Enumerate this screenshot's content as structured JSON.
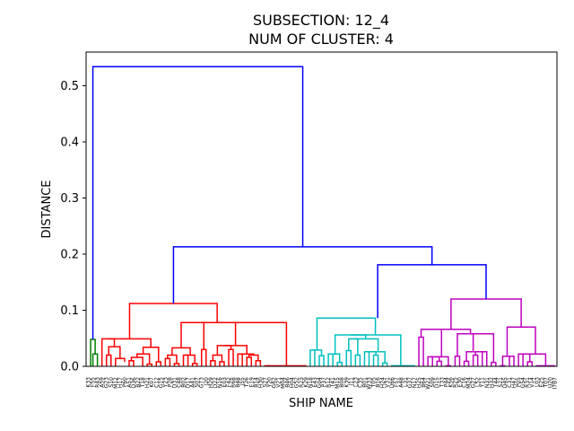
{
  "chart_data": {
    "type": "dendrogram",
    "title_lines": [
      "SUBSECTION: 12_4",
      "NUM OF CLUSTER: 4"
    ],
    "xlabel": "SHIP NAME",
    "ylabel": "DISTANCE",
    "ylim": [
      0,
      0.56
    ],
    "yticks": [
      "0.0",
      "0.1",
      "0.2",
      "0.3",
      "0.4",
      "0.5"
    ],
    "leaf_count": 104,
    "leaf_labels": [
      "K33",
      "F55",
      "R43",
      "A59",
      "G23",
      "S10",
      "M12",
      "H17",
      "P60",
      "A51",
      "D36",
      "B22",
      "T18",
      "H21",
      "K07",
      "C12",
      "G15",
      "Y23",
      "P28",
      "D31",
      "C48",
      "B02",
      "D17",
      "A41",
      "S07",
      "G73",
      "J20",
      "H29",
      "D22",
      "N16",
      "E03",
      "F42",
      "R68",
      "B48",
      "J55",
      "T26",
      "E19",
      "B14",
      "H30",
      "S27",
      "Y20",
      "G62",
      "V21",
      "M04",
      "B46",
      "H04",
      "G52",
      "R23",
      "K29",
      "N18",
      "E43",
      "G04",
      "P37",
      "R12",
      "T41",
      "M15",
      "B08",
      "K39",
      "J11",
      "L23",
      "C35",
      "B01",
      "W33",
      "T05",
      "B16",
      "H24",
      "V31",
      "D66",
      "F57",
      "A48",
      "L31",
      "G37",
      "N17",
      "H25",
      "B64",
      "W21",
      "S09",
      "D15",
      "T33",
      "P44",
      "K56",
      "R25",
      "E30",
      "C16",
      "M24",
      "G27",
      "L52",
      "Y11",
      "N31",
      "H32",
      "T44",
      "S21",
      "D45",
      "C31",
      "H47",
      "P05",
      "G54",
      "R31",
      "V14",
      "L03",
      "E25",
      "T07",
      "U20",
      "I7B7"
    ],
    "clusters": [
      {
        "color": "#008000",
        "leaves": [
          0,
          2
        ]
      },
      {
        "color": "#ff0000",
        "leaves": [
          3,
          48
        ]
      },
      {
        "color": "#00bfbf",
        "leaves": [
          49,
          72
        ]
      },
      {
        "color": "#bf00bf",
        "leaves": [
          73,
          103
        ]
      }
    ],
    "links": [
      {
        "color": "#008000",
        "lx": 0.5,
        "ly": 0,
        "rx": 1.5,
        "ry": 0.022,
        "h": 0.048
      },
      {
        "color": "#008000",
        "lx": 1,
        "ly": 0,
        "rx": 2,
        "ry": 0,
        "h": 0.022
      },
      {
        "color": "#ff0000",
        "lx": 4,
        "ly": 0,
        "rx": 5,
        "ry": 0,
        "h": 0.02
      },
      {
        "color": "#ff0000",
        "lx": 6,
        "ly": 0,
        "rx": 8,
        "ry": 0.008,
        "h": 0.014
      },
      {
        "color": "#ff0000",
        "lx": 4.5,
        "ly": 0.02,
        "rx": 7,
        "ry": 0.014,
        "h": 0.035
      },
      {
        "color": "#ff0000",
        "lx": 3,
        "ly": 0,
        "rx": 5.75,
        "ry": 0.035,
        "h": 0.049
      },
      {
        "color": "#ff0000",
        "lx": 9,
        "ly": 0,
        "rx": 10,
        "ry": 0,
        "h": 0.01
      },
      {
        "color": "#ff0000",
        "lx": 9.5,
        "ly": 0.01,
        "rx": 12,
        "ry": 0,
        "h": 0.016
      },
      {
        "color": "#ff0000",
        "lx": 13,
        "ly": 0,
        "rx": 14,
        "ry": 0,
        "h": 0.004
      },
      {
        "color": "#ff0000",
        "lx": 10.75,
        "ly": 0.016,
        "rx": 13.5,
        "ry": 0.004,
        "h": 0.022
      },
      {
        "color": "#ff0000",
        "lx": 15,
        "ly": 0,
        "rx": 16,
        "ry": 0,
        "h": 0.008
      },
      {
        "color": "#ff0000",
        "lx": 12.1,
        "ly": 0.022,
        "rx": 15.5,
        "ry": 0.008,
        "h": 0.034
      },
      {
        "color": "#ff0000",
        "lx": 4.4,
        "ly": 0.049,
        "rx": 13.8,
        "ry": 0.034,
        "h": 0.049
      },
      {
        "color": "#ff0000",
        "lx": 17,
        "ly": 0,
        "rx": 18,
        "ry": 0,
        "h": 0.014
      },
      {
        "color": "#ff0000",
        "lx": 19,
        "ly": 0,
        "rx": 20,
        "ry": 0,
        "h": 0.005
      },
      {
        "color": "#ff0000",
        "lx": 17.5,
        "ly": 0.014,
        "rx": 19.5,
        "ry": 0.005,
        "h": 0.02
      },
      {
        "color": "#ff0000",
        "lx": 21,
        "ly": 0,
        "rx": 22,
        "ry": 0,
        "h": 0.02
      },
      {
        "color": "#ff0000",
        "lx": 23,
        "ly": 0,
        "rx": 24,
        "ry": 0,
        "h": 0.005
      },
      {
        "color": "#ff0000",
        "lx": 21.5,
        "ly": 0.02,
        "rx": 23.5,
        "ry": 0.005,
        "h": 0.02
      },
      {
        "color": "#ff0000",
        "lx": 18.5,
        "ly": 0.02,
        "rx": 22.5,
        "ry": 0.02,
        "h": 0.033
      },
      {
        "color": "#ff0000",
        "lx": 25,
        "ly": 0,
        "rx": 26,
        "ry": 0,
        "h": 0.03
      },
      {
        "color": "#ff0000",
        "lx": 27,
        "ly": 0,
        "rx": 28,
        "ry": 0,
        "h": 0.01
      },
      {
        "color": "#ff0000",
        "lx": 29,
        "ly": 0,
        "rx": 30,
        "ry": 0,
        "h": 0.008
      },
      {
        "color": "#ff0000",
        "lx": 27.5,
        "ly": 0.01,
        "rx": 29.5,
        "ry": 0.008,
        "h": 0.02
      },
      {
        "color": "#ff0000",
        "lx": 31,
        "ly": 0,
        "rx": 32,
        "ry": 0,
        "h": 0.03
      },
      {
        "color": "#ff0000",
        "lx": 28.5,
        "ly": 0.02,
        "rx": 31.5,
        "ry": 0.03,
        "h": 0.037
      },
      {
        "color": "#ff0000",
        "lx": 33,
        "ly": 0,
        "rx": 34,
        "ry": 0,
        "h": 0.022
      },
      {
        "color": "#ff0000",
        "lx": 35,
        "ly": 0,
        "rx": 36,
        "ry": 0,
        "h": 0.016
      },
      {
        "color": "#ff0000",
        "lx": 37,
        "ly": 0,
        "rx": 38,
        "ry": 0,
        "h": 0.01
      },
      {
        "color": "#ff0000",
        "lx": 35.5,
        "ly": 0.016,
        "rx": 37.5,
        "ry": 0.01,
        "h": 0.02
      },
      {
        "color": "#ff0000",
        "lx": 33.5,
        "ly": 0.022,
        "rx": 36.5,
        "ry": 0.02,
        "h": 0.022
      },
      {
        "color": "#ff0000",
        "lx": 30,
        "ly": 0.037,
        "rx": 35,
        "ry": 0.022,
        "h": 0.037
      },
      {
        "color": "#ff0000",
        "lx": 25.5,
        "ly": 0.03,
        "rx": 32.5,
        "ry": 0.037,
        "h": 0.078
      },
      {
        "color": "#ff0000",
        "lx": 39,
        "ly": 0,
        "rx": 40,
        "ry": 0,
        "h": 0.001
      },
      {
        "color": "#ff0000",
        "lx": 39.5,
        "ly": 0.001,
        "rx": 48,
        "ry": 0,
        "h": 0.001
      },
      {
        "color": "#ff0000",
        "lx": 29,
        "ly": 0.078,
        "rx": 43.75,
        "ry": 0.001,
        "h": 0.078
      },
      {
        "color": "#ff0000",
        "lx": 20.5,
        "ly": 0.033,
        "rx": 36.4,
        "ry": 0.078,
        "h": 0.078
      },
      {
        "color": "#ff0000",
        "lx": 9.1,
        "ly": 0.049,
        "rx": 28.45,
        "ry": 0.078,
        "h": 0.112
      },
      {
        "color": "#00bfbf",
        "lx": 49,
        "ly": 0,
        "rx": 50,
        "ry": 0,
        "h": 0.029
      },
      {
        "color": "#00bfbf",
        "lx": 51,
        "ly": 0,
        "rx": 52,
        "ry": 0,
        "h": 0.019
      },
      {
        "color": "#00bfbf",
        "lx": 49.5,
        "ly": 0.029,
        "rx": 51.5,
        "ry": 0.019,
        "h": 0.029
      },
      {
        "color": "#00bfbf",
        "lx": 53,
        "ly": 0,
        "rx": 54,
        "ry": 0,
        "h": 0.022
      },
      {
        "color": "#00bfbf",
        "lx": 55,
        "ly": 0,
        "rx": 56,
        "ry": 0,
        "h": 0.007
      },
      {
        "color": "#00bfbf",
        "lx": 53.5,
        "ly": 0.022,
        "rx": 55.5,
        "ry": 0.007,
        "h": 0.022
      },
      {
        "color": "#00bfbf",
        "lx": 57,
        "ly": 0,
        "rx": 58,
        "ry": 0,
        "h": 0.028
      },
      {
        "color": "#00bfbf",
        "lx": 59,
        "ly": 0,
        "rx": 60,
        "ry": 0,
        "h": 0.02
      },
      {
        "color": "#00bfbf",
        "lx": 57.5,
        "ly": 0.028,
        "rx": 59.5,
        "ry": 0.02,
        "h": 0.049
      },
      {
        "color": "#00bfbf",
        "lx": 61,
        "ly": 0,
        "rx": 62,
        "ry": 0,
        "h": 0.026
      },
      {
        "color": "#00bfbf",
        "lx": 63,
        "ly": 0,
        "rx": 64,
        "ry": 0,
        "h": 0.02
      },
      {
        "color": "#00bfbf",
        "lx": 61.5,
        "ly": 0.026,
        "rx": 63.5,
        "ry": 0.02,
        "h": 0.026
      },
      {
        "color": "#00bfbf",
        "lx": 65,
        "ly": 0,
        "rx": 66,
        "ry": 0,
        "h": 0.006
      },
      {
        "color": "#00bfbf",
        "lx": 62.5,
        "ly": 0.026,
        "rx": 65.5,
        "ry": 0.006,
        "h": 0.026
      },
      {
        "color": "#00bfbf",
        "lx": 58.5,
        "ly": 0.049,
        "rx": 64,
        "ry": 0.026,
        "h": 0.049
      },
      {
        "color": "#00bfbf",
        "lx": 54.5,
        "ly": 0.022,
        "rx": 61.25,
        "ry": 0.049,
        "h": 0.056
      },
      {
        "color": "#00bfbf",
        "lx": 67,
        "ly": 0,
        "rx": 68,
        "ry": 0,
        "h": 0.001
      },
      {
        "color": "#00bfbf",
        "lx": 69,
        "ly": 0,
        "rx": 72,
        "ry": 0,
        "h": 0.001
      },
      {
        "color": "#00bfbf",
        "lx": 67.5,
        "ly": 0.001,
        "rx": 70.5,
        "ry": 0.001,
        "h": 0.001
      },
      {
        "color": "#00bfbf",
        "lx": 57.9,
        "ly": 0.056,
        "rx": 69,
        "ry": 0.001,
        "h": 0.056
      },
      {
        "color": "#00bfbf",
        "lx": 50.5,
        "ly": 0.029,
        "rx": 63.4,
        "ry": 0.056,
        "h": 0.086
      },
      {
        "color": "#bf00bf",
        "lx": 73,
        "ly": 0,
        "rx": 74,
        "ry": 0,
        "h": 0.052
      },
      {
        "color": "#bf00bf",
        "lx": 75,
        "ly": 0,
        "rx": 76,
        "ry": 0,
        "h": 0.017
      },
      {
        "color": "#bf00bf",
        "lx": 77,
        "ly": 0,
        "rx": 78,
        "ry": 0,
        "h": 0.009
      },
      {
        "color": "#bf00bf",
        "lx": 75.5,
        "ly": 0.017,
        "rx": 77.5,
        "ry": 0.009,
        "h": 0.017
      },
      {
        "color": "#bf00bf",
        "lx": 79,
        "ly": 0,
        "rx": 80,
        "ry": 0,
        "h": 0.001
      },
      {
        "color": "#bf00bf",
        "lx": 76.5,
        "ly": 0.017,
        "rx": 79.5,
        "ry": 0.001,
        "h": 0.017
      },
      {
        "color": "#bf00bf",
        "lx": 73.5,
        "ly": 0.052,
        "rx": 78,
        "ry": 0.017,
        "h": 0.066
      },
      {
        "color": "#bf00bf",
        "lx": 81,
        "ly": 0,
        "rx": 82,
        "ry": 0,
        "h": 0.018
      },
      {
        "color": "#bf00bf",
        "lx": 83,
        "ly": 0,
        "rx": 84,
        "ry": 0,
        "h": 0.009
      },
      {
        "color": "#bf00bf",
        "lx": 85,
        "ly": 0,
        "rx": 86,
        "ry": 0,
        "h": 0.02
      },
      {
        "color": "#bf00bf",
        "lx": 87,
        "ly": 0,
        "rx": 88,
        "ry": 0,
        "h": 0.026
      },
      {
        "color": "#bf00bf",
        "lx": 85.5,
        "ly": 0.02,
        "rx": 87.5,
        "ry": 0.026,
        "h": 0.026
      },
      {
        "color": "#bf00bf",
        "lx": 83.5,
        "ly": 0.009,
        "rx": 86.5,
        "ry": 0.026,
        "h": 0.026
      },
      {
        "color": "#bf00bf",
        "lx": 89,
        "ly": 0,
        "rx": 90,
        "ry": 0,
        "h": 0.007
      },
      {
        "color": "#bf00bf",
        "lx": 85,
        "ly": 0.026,
        "rx": 89.5,
        "ry": 0.007,
        "h": 0.058
      },
      {
        "color": "#bf00bf",
        "lx": 81.5,
        "ly": 0.018,
        "rx": 87.25,
        "ry": 0.058,
        "h": 0.058
      },
      {
        "color": "#bf00bf",
        "lx": 75.75,
        "ly": 0.066,
        "rx": 84.4,
        "ry": 0.058,
        "h": 0.066
      },
      {
        "color": "#bf00bf",
        "lx": 91,
        "ly": 0,
        "rx": 92,
        "ry": 0,
        "h": 0.001
      },
      {
        "color": "#bf00bf",
        "lx": 93,
        "ly": 0,
        "rx": 94,
        "ry": 0,
        "h": 0.018
      },
      {
        "color": "#bf00bf",
        "lx": 91.5,
        "ly": 0.001,
        "rx": 93.5,
        "ry": 0.018,
        "h": 0.018
      },
      {
        "color": "#bf00bf",
        "lx": 95,
        "ly": 0,
        "rx": 96,
        "ry": 0,
        "h": 0.022
      },
      {
        "color": "#bf00bf",
        "lx": 97,
        "ly": 0,
        "rx": 98,
        "ry": 0,
        "h": 0.008
      },
      {
        "color": "#bf00bf",
        "lx": 95.5,
        "ly": 0.022,
        "rx": 97.5,
        "ry": 0.008,
        "h": 0.022
      },
      {
        "color": "#bf00bf",
        "lx": 99,
        "ly": 0,
        "rx": 103,
        "ry": 0,
        "h": 0.001
      },
      {
        "color": "#bf00bf",
        "lx": 96.5,
        "ly": 0.022,
        "rx": 101,
        "ry": 0.001,
        "h": 0.022
      },
      {
        "color": "#bf00bf",
        "lx": 92.5,
        "ly": 0.018,
        "rx": 98.75,
        "ry": 0.022,
        "h": 0.07
      },
      {
        "color": "#bf00bf",
        "lx": 80.1,
        "ly": 0.066,
        "rx": 95.6,
        "ry": 0.07,
        "h": 0.12
      },
      {
        "color": "#0000ff",
        "lx": 63.9,
        "ly": 0.086,
        "rx": 87.85,
        "ry": 0.12,
        "h": 0.181
      },
      {
        "color": "#0000ff",
        "lx": 18.8,
        "ly": 0.112,
        "rx": 75.9,
        "ry": 0.181,
        "h": 0.213
      },
      {
        "color": "#0000ff",
        "lx": 1.0,
        "ly": 0.048,
        "rx": 47.35,
        "ry": 0.213,
        "h": 0.534
      }
    ]
  }
}
